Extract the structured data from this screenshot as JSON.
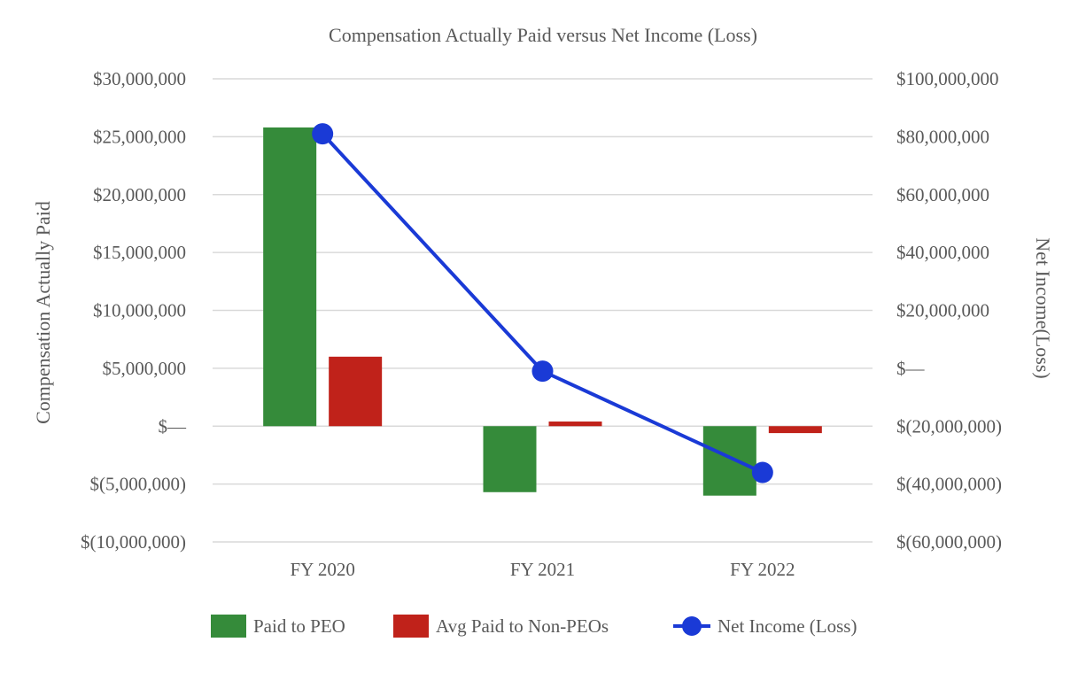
{
  "chart_data": {
    "type": "bar",
    "title": "Compensation Actually Paid versus Net Income (Loss)",
    "ylabel": "Compensation Actually Paid",
    "y2label": "Net Income(Loss)",
    "categories": [
      "FY 2020",
      "FY 2021",
      "FY 2022"
    ],
    "ylim": [
      -10000000,
      30000000
    ],
    "y2lim": [
      -60000000,
      100000000
    ],
    "y_ticks": [
      {
        "value": 30000000,
        "label": "$30,000,000"
      },
      {
        "value": 25000000,
        "label": "$25,000,000"
      },
      {
        "value": 20000000,
        "label": "$20,000,000"
      },
      {
        "value": 15000000,
        "label": "$15,000,000"
      },
      {
        "value": 10000000,
        "label": "$10,000,000"
      },
      {
        "value": 5000000,
        "label": "$5,000,000"
      },
      {
        "value": 0,
        "label": "$—"
      },
      {
        "value": -5000000,
        "label": "$(5,000,000)"
      },
      {
        "value": -10000000,
        "label": "$(10,000,000)"
      }
    ],
    "y2_ticks": [
      {
        "value": 100000000,
        "label": "$100,000,000"
      },
      {
        "value": 80000000,
        "label": "$80,000,000"
      },
      {
        "value": 60000000,
        "label": "$60,000,000"
      },
      {
        "value": 40000000,
        "label": "$40,000,000"
      },
      {
        "value": 20000000,
        "label": "$20,000,000"
      },
      {
        "value": 0,
        "label": "$—"
      },
      {
        "value": -20000000,
        "label": "$(20,000,000)"
      },
      {
        "value": -40000000,
        "label": "$(40,000,000)"
      },
      {
        "value": -60000000,
        "label": "$(60,000,000)"
      }
    ],
    "series": [
      {
        "name": "Paid to PEO",
        "kind": "bar",
        "axis": "left",
        "color": "#358b3a",
        "values": [
          25800000,
          -5700000,
          -6000000
        ]
      },
      {
        "name": "Avg Paid to Non-PEOs",
        "kind": "bar",
        "axis": "left",
        "color": "#c0221a",
        "values": [
          6000000,
          400000,
          -600000
        ]
      },
      {
        "name": "Net Income (Loss)",
        "kind": "line",
        "axis": "right",
        "color": "#1a3ad6",
        "values": [
          81000000,
          -1000000,
          -36000000
        ]
      }
    ],
    "grid": true,
    "legend_position": "bottom"
  }
}
